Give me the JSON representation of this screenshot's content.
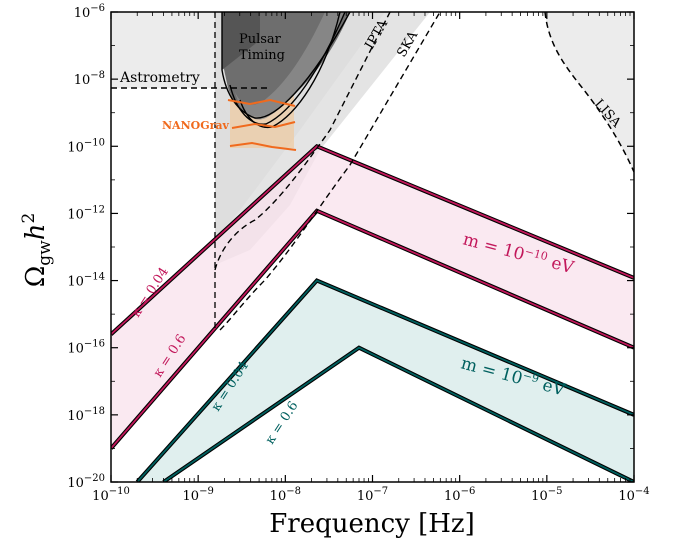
{
  "chart_data": {
    "type": "area",
    "xlabel": "Frequency [Hz]",
    "ylabel": {
      "main": "Ω",
      "sub": "gw",
      "tail": "h",
      "sup": "2"
    },
    "x_scale": "log",
    "y_scale": "log",
    "xlim": [
      1e-10,
      0.0001
    ],
    "ylim": [
      1e-20,
      1e-06
    ],
    "x_ticks": [
      {
        "value": 1e-10,
        "base": "10",
        "exp": "−10"
      },
      {
        "value": 1e-09,
        "base": "10",
        "exp": "−9"
      },
      {
        "value": 1e-08,
        "base": "10",
        "exp": "−8"
      },
      {
        "value": 1e-07,
        "base": "10",
        "exp": "−7"
      },
      {
        "value": 1e-06,
        "base": "10",
        "exp": "−6"
      },
      {
        "value": 1e-05,
        "base": "10",
        "exp": "−5"
      },
      {
        "value": 0.0001,
        "base": "10",
        "exp": "−4"
      }
    ],
    "y_ticks": [
      {
        "value": 1e-20,
        "base": "10",
        "exp": "−20"
      },
      {
        "value": 1e-18,
        "base": "10",
        "exp": "−18"
      },
      {
        "value": 1e-16,
        "base": "10",
        "exp": "−16"
      },
      {
        "value": 1e-14,
        "base": "10",
        "exp": "−14"
      },
      {
        "value": 1e-12,
        "base": "10",
        "exp": "−12"
      },
      {
        "value": 1e-10,
        "base": "10",
        "exp": "−10"
      },
      {
        "value": 1e-08,
        "base": "10",
        "exp": "−8"
      },
      {
        "value": 1e-06,
        "base": "10",
        "exp": "−6"
      }
    ],
    "bands": [
      {
        "label_main": "m = 10",
        "label_exp": "−10",
        "label_unit": " eV",
        "color": "#c2185b",
        "fill": "#f8e1ec",
        "kappa_labels": [
          "κ = 0.04",
          "κ = 0.6"
        ],
        "upper": [
          [
            1e-10,
            2.5e-16
          ],
          [
            2.3e-08,
            1e-10
          ],
          [
            0.0001,
            1.2e-14
          ]
        ],
        "lower": [
          [
            1e-10,
            1e-19
          ],
          [
            2.3e-08,
            1.2e-12
          ],
          [
            0.0001,
            1e-16
          ]
        ]
      },
      {
        "label_main": "m = 10",
        "label_exp": "−9",
        "label_unit": " eV",
        "color": "#00605f",
        "fill": "#e0efee",
        "kappa_labels": [
          "κ = 0.04",
          "κ = 0.6"
        ],
        "upper": [
          [
            2e-10,
            1e-20
          ],
          [
            2.3e-08,
            1e-14
          ],
          [
            0.0001,
            1e-18
          ]
        ],
        "lower": [
          [
            4e-10,
            1e-20
          ],
          [
            7e-08,
            1e-16
          ],
          [
            0.0001,
            1e-20
          ]
        ]
      }
    ],
    "constraints": [
      {
        "name": "Astrometry",
        "level": 5e-09,
        "x_from": 1e-10,
        "x_to": 2.5e-09
      },
      {
        "name": "Pulsar Timing"
      },
      {
        "name": "NANOGrav",
        "color": "#f06a1d"
      },
      {
        "name": "IPTA"
      },
      {
        "name": "SKA"
      },
      {
        "name": "LISA"
      }
    ]
  }
}
